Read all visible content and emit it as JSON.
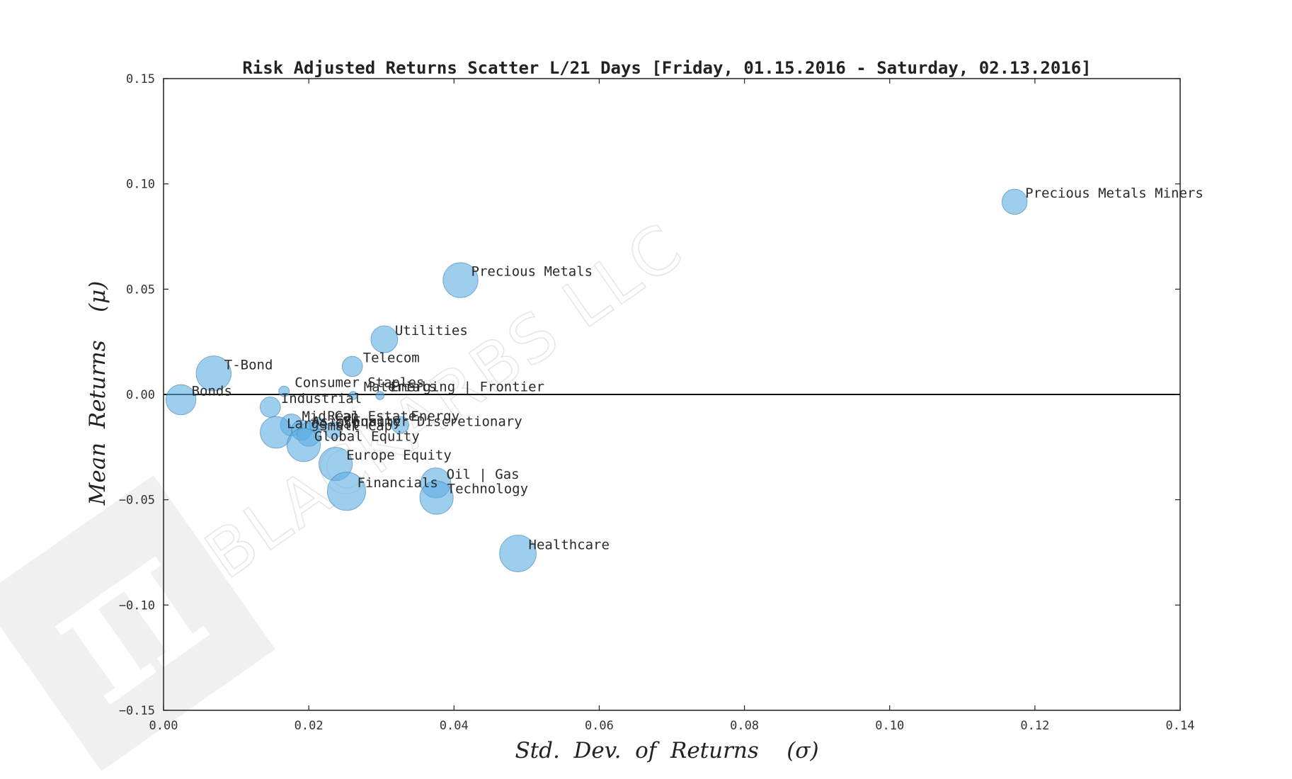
{
  "chart_data": {
    "type": "scatter",
    "title": "Risk Adjusted Returns Scatter L/21 Days [Friday, 01.15.2016 - Saturday, 02.13.2016]",
    "xlabel": "Std.  Dev.  of  Returns    (σ)",
    "ylabel": "Mean  Returns    (μ)",
    "xlim": [
      0.0,
      0.14
    ],
    "ylim": [
      -0.15,
      0.15
    ],
    "x_ticks": [
      0.0,
      0.02,
      0.04,
      0.06,
      0.08,
      0.1,
      0.12,
      0.14
    ],
    "x_tick_labels": [
      "0.00",
      "0.02",
      "0.04",
      "0.06",
      "0.08",
      "0.10",
      "0.12",
      "0.14"
    ],
    "y_ticks": [
      0.15,
      0.1,
      0.05,
      0.0,
      -0.05,
      -0.1,
      -0.15
    ],
    "y_tick_labels": [
      "0.15",
      "0.10",
      "0.05",
      "0.00",
      "−0.05",
      "−0.10",
      "−0.15"
    ],
    "zero_line": 0.0,
    "grid": false,
    "marker_color": "#5DADE2",
    "marker_edge_color": "#3a7fb0",
    "watermark_text": "BLACKARBS LLC",
    "points": [
      {
        "label": "Precious Metals Miners",
        "x": 0.1172,
        "y": 0.0915,
        "size": 0.6
      },
      {
        "label": "Precious Metals",
        "x": 0.0409,
        "y": 0.0543,
        "size": 0.9
      },
      {
        "label": "Utilities",
        "x": 0.0304,
        "y": 0.0262,
        "size": 0.65
      },
      {
        "label": "Telecom",
        "x": 0.026,
        "y": 0.0133,
        "size": 0.45
      },
      {
        "label": "T-Bond",
        "x": 0.0069,
        "y": 0.01,
        "size": 0.9
      },
      {
        "label": "Consumer Staples",
        "x": 0.0166,
        "y": 0.0015,
        "size": 0.15
      },
      {
        "label": "Materials",
        "x": 0.0261,
        "y": -0.0005,
        "size": 0.08
      },
      {
        "label": "Emerging | Frontier",
        "x": 0.0298,
        "y": -0.0005,
        "size": 0.08
      },
      {
        "label": "Bonds",
        "x": 0.0024,
        "y": -0.0025,
        "size": 0.75
      },
      {
        "label": "Industrial",
        "x": 0.0147,
        "y": -0.006,
        "size": 0.45
      },
      {
        "label": "Mid Cap",
        "x": 0.0176,
        "y": -0.0145,
        "size": 0.5
      },
      {
        "label": "Real Estate",
        "x": 0.0211,
        "y": -0.0145,
        "size": 0.3
      },
      {
        "label": "Energy",
        "x": 0.0326,
        "y": -0.0145,
        "size": 0.35
      },
      {
        "label": "Asia Equity",
        "x": 0.019,
        "y": -0.017,
        "size": 0.45
      },
      {
        "label": "Consumer Discretionary",
        "x": 0.0234,
        "y": -0.017,
        "size": 0.35
      },
      {
        "label": "Small Cap",
        "x": 0.02,
        "y": -0.019,
        "size": 0.55
      },
      {
        "label": "Large Cap",
        "x": 0.0155,
        "y": -0.018,
        "size": 0.8
      },
      {
        "label": "Global Equity",
        "x": 0.0193,
        "y": -0.024,
        "size": 0.85
      },
      {
        "label": "Europe Equity",
        "x": 0.0237,
        "y": -0.033,
        "size": 0.85
      },
      {
        "label": "Oil | Gas",
        "x": 0.0375,
        "y": -0.042,
        "size": 0.75
      },
      {
        "label": "Financials",
        "x": 0.0252,
        "y": -0.046,
        "size": 1.0
      },
      {
        "label": "Technology",
        "x": 0.0376,
        "y": -0.049,
        "size": 0.85
      },
      {
        "label": "Healthcare",
        "x": 0.0488,
        "y": -0.0755,
        "size": 0.95
      }
    ]
  }
}
